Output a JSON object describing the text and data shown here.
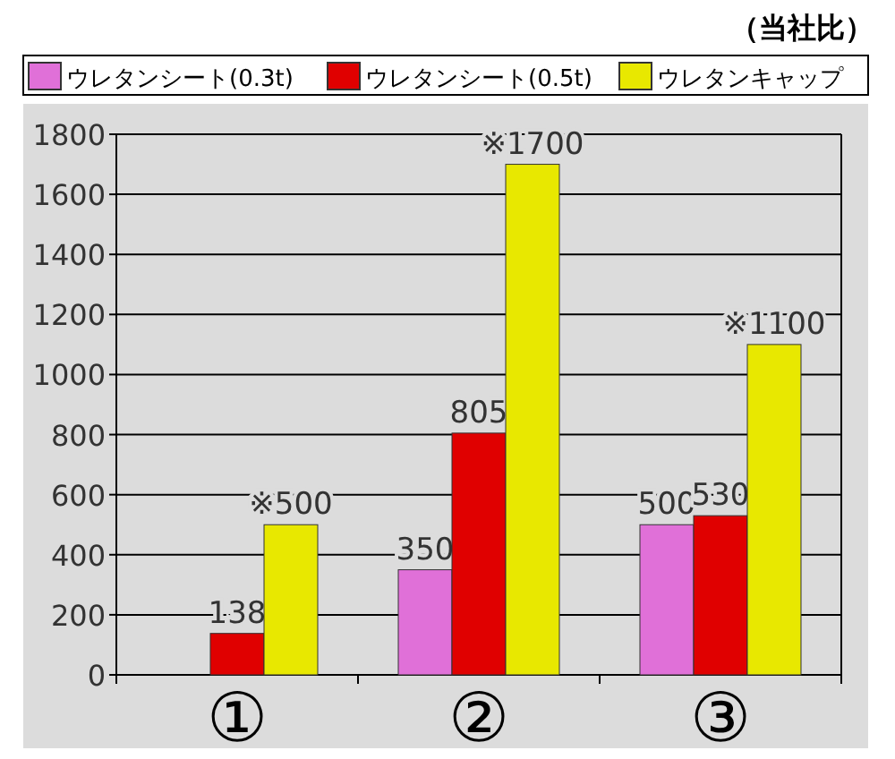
{
  "chart_data": {
    "type": "bar",
    "annotations": [
      "（当社比）"
    ],
    "categories": [
      "①",
      "②",
      "③"
    ],
    "series": [
      {
        "name": "ウレタンシート(0.3t)",
        "color": "#e070d8",
        "values": [
          null,
          350,
          500
        ],
        "value_labels": [
          null,
          "350",
          "500"
        ]
      },
      {
        "name": "ウレタンシート(0.5t)",
        "color": "#e00000",
        "values": [
          138,
          805,
          530
        ],
        "value_labels": [
          "138",
          "805",
          "530"
        ]
      },
      {
        "name": "ウレタンキャップ",
        "color": "#e8e800",
        "values": [
          500,
          1700,
          1100
        ],
        "value_labels": [
          "※500",
          "※1700",
          "※1100"
        ]
      }
    ],
    "ylim": [
      0,
      1800
    ],
    "yticks": [
      0,
      200,
      400,
      600,
      800,
      1000,
      1200,
      1400,
      1600,
      1800
    ],
    "grid": "y",
    "legend": "top"
  }
}
